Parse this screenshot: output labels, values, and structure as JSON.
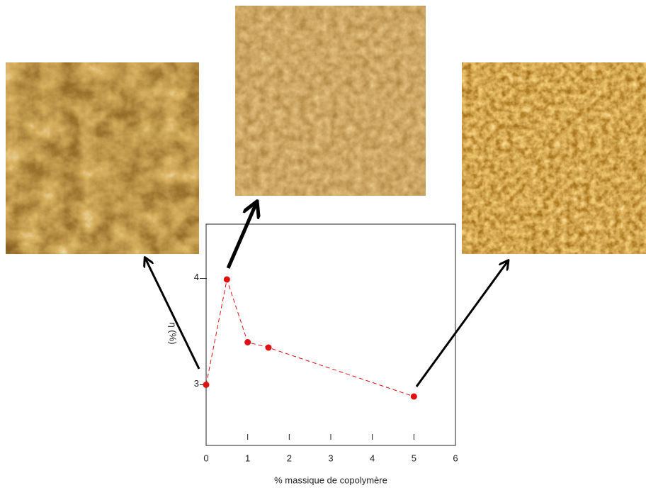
{
  "chart_data": {
    "type": "line",
    "x": [
      0,
      0.5,
      1,
      1.5,
      5
    ],
    "values": [
      3.0,
      3.99,
      3.4,
      3.35,
      2.89
    ],
    "color": "#dd1111",
    "line_style": "dashed",
    "xlabel": "% massique de copolymère",
    "ylabel": "η (%)",
    "xlim": [
      0,
      6
    ],
    "xticks": [
      0,
      1,
      2,
      3,
      4,
      5,
      6
    ],
    "ylim": [
      2.43,
      4.51
    ],
    "yticks": [
      3,
      4
    ]
  }
}
